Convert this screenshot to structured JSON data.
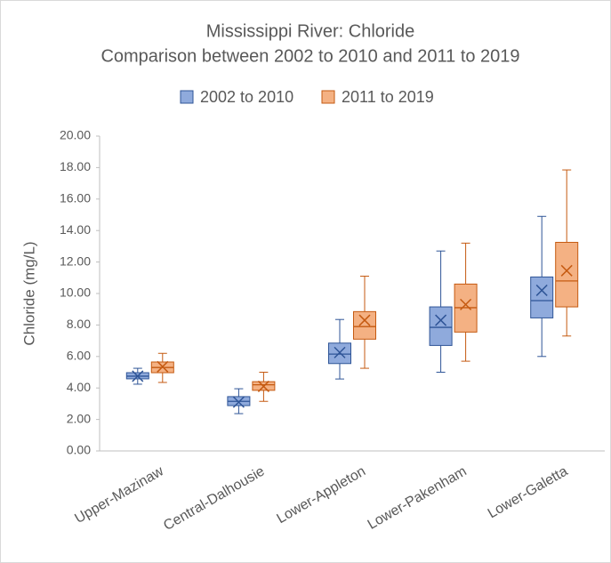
{
  "chart_data": {
    "type": "box",
    "title": "Mississippi River: Chloride",
    "subtitle": "Comparison between 2002 to 2010 and 2011 to 2019",
    "ylabel": "Chloride (mg/L)",
    "categories": [
      "Upper-Mazinaw",
      "Central-Dalhousie",
      "Lower-Appleton",
      "Lower-Pakenham",
      "Lower-Galetta"
    ],
    "series": [
      {
        "name": "2002 to 2010",
        "color": "#8faadc",
        "edge_color": "#2f5597",
        "min": [
          4.24,
          2.37,
          4.57,
          5.0,
          6.0
        ],
        "q1": [
          4.58,
          2.88,
          5.55,
          6.7,
          8.45
        ],
        "median": [
          4.75,
          3.15,
          6.15,
          7.85,
          9.55
        ],
        "q3": [
          4.97,
          3.45,
          6.85,
          9.15,
          11.05
        ],
        "max": [
          5.25,
          3.95,
          8.35,
          12.7,
          14.9
        ],
        "mean": [
          4.75,
          3.1,
          6.25,
          8.3,
          10.2
        ]
      },
      {
        "name": "2011 to 2019",
        "color": "#f4b183",
        "edge_color": "#c55a11",
        "min": [
          4.35,
          3.15,
          5.25,
          5.7,
          7.3
        ],
        "q1": [
          4.97,
          3.85,
          7.1,
          7.55,
          9.15
        ],
        "median": [
          5.3,
          4.2,
          7.9,
          9.1,
          10.8
        ],
        "q3": [
          5.65,
          4.4,
          8.85,
          10.6,
          13.25
        ],
        "max": [
          6.2,
          5.0,
          11.1,
          13.2,
          17.85
        ],
        "mean": [
          5.35,
          4.1,
          8.3,
          9.3,
          11.45
        ]
      }
    ],
    "ylim": [
      0,
      20
    ],
    "yticks": [
      {
        "value": 0,
        "label": "0.00"
      },
      {
        "value": 2,
        "label": "2.00"
      },
      {
        "value": 4,
        "label": "4.00"
      },
      {
        "value": 6,
        "label": "6.00"
      },
      {
        "value": 8,
        "label": "8.00"
      },
      {
        "value": 10,
        "label": "10.00"
      },
      {
        "value": 12,
        "label": "12.00"
      },
      {
        "value": 14,
        "label": "14.00"
      },
      {
        "value": 16,
        "label": "16.00"
      },
      {
        "value": 18,
        "label": "18.00"
      },
      {
        "value": 20,
        "label": "20.00"
      }
    ],
    "legend": "top"
  }
}
